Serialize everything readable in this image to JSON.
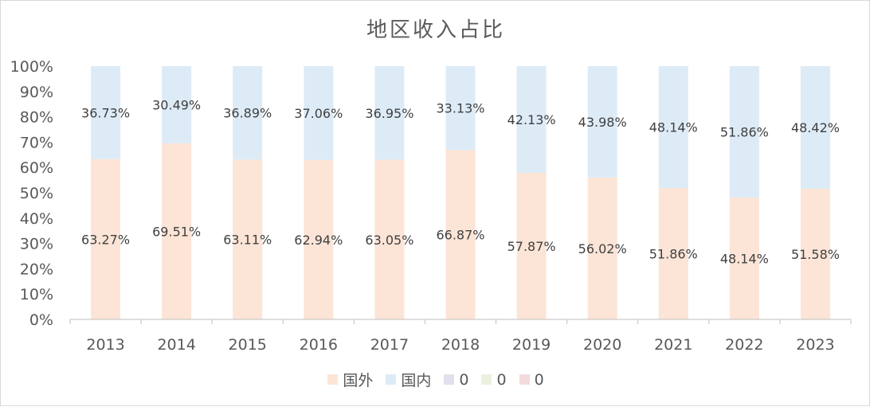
{
  "title": "地区收入占比",
  "colors": {
    "foreign": "#fce4d6",
    "domestic": "#ddebf7",
    "legend_extra_1": "#e4dfec",
    "legend_extra_2": "#ebf1de",
    "legend_extra_3": "#f2dcdb"
  },
  "legend": [
    {
      "label": "国外",
      "color": "#fce4d6"
    },
    {
      "label": "国内",
      "color": "#ddebf7"
    },
    {
      "label": "0",
      "color": "#e4dfec"
    },
    {
      "label": "0",
      "color": "#ebf1de"
    },
    {
      "label": "0",
      "color": "#f2dcdb"
    }
  ],
  "chart_data": {
    "type": "bar",
    "stacked": true,
    "percent_stacked": true,
    "title": "地区收入占比",
    "xlabel": "",
    "ylabel": "",
    "categories": [
      "2013",
      "2014",
      "2015",
      "2016",
      "2017",
      "2018",
      "2019",
      "2020",
      "2021",
      "2022",
      "2023"
    ],
    "series": [
      {
        "name": "国外",
        "values": [
          63.27,
          69.51,
          63.11,
          62.94,
          63.05,
          66.87,
          57.87,
          56.02,
          51.86,
          48.14,
          51.58
        ],
        "labels": [
          "63.27%",
          "69.51%",
          "63.11%",
          "62.94%",
          "63.05%",
          "66.87%",
          "57.87%",
          "56.02%",
          "51.86%",
          "48.14%",
          "51.58%"
        ]
      },
      {
        "name": "国内",
        "values": [
          36.73,
          30.49,
          36.89,
          37.06,
          36.95,
          33.13,
          42.13,
          43.98,
          48.14,
          51.86,
          48.42
        ],
        "labels": [
          "36.73%",
          "30.49%",
          "36.89%",
          "37.06%",
          "36.95%",
          "33.13%",
          "42.13%",
          "43.98%",
          "48.14%",
          "51.86%",
          "48.42%"
        ]
      }
    ],
    "ylim": [
      0,
      100
    ],
    "yticks": [
      "0%",
      "10%",
      "20%",
      "30%",
      "40%",
      "50%",
      "60%",
      "70%",
      "80%",
      "90%",
      "100%"
    ],
    "grid": false,
    "legend_position": "bottom"
  }
}
